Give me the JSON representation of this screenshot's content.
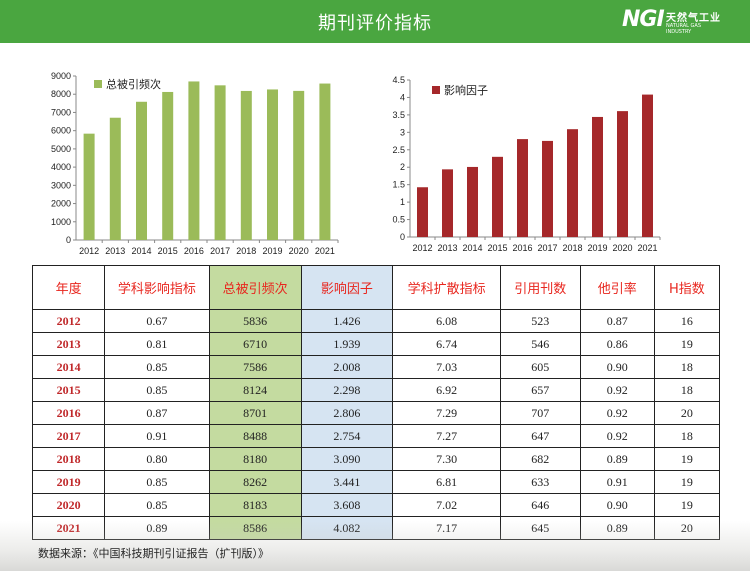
{
  "header": {
    "title": "期刊评价指标"
  },
  "logo": {
    "mark": "NGI",
    "name_cn": "天然气工业",
    "name_en": "NATURAL GAS INDUSTRY"
  },
  "colors": {
    "header_green": "#4aa640",
    "bar_green": "#9bbb59",
    "bar_red": "#a5282a",
    "cell_green": "#c4dba0",
    "cell_blue": "#d6e4f2",
    "header_text_red": "#e8261e"
  },
  "chart_data": [
    {
      "type": "bar",
      "categories": [
        "2012",
        "2013",
        "2014",
        "2015",
        "2016",
        "2017",
        "2018",
        "2019",
        "2020",
        "2021"
      ],
      "series": [
        {
          "name": "总被引频次",
          "values": [
            5836,
            6710,
            7586,
            8124,
            8701,
            8488,
            8180,
            8262,
            8183,
            8586
          ]
        }
      ],
      "ylim": [
        0,
        9000
      ],
      "yticks": [
        "0",
        "1000",
        "2000",
        "3000",
        "4000",
        "5000",
        "6000",
        "7000",
        "8000",
        "9000"
      ],
      "legend_position": "top-left",
      "grid": false
    },
    {
      "type": "bar",
      "categories": [
        "2012",
        "2013",
        "2014",
        "2015",
        "2016",
        "2017",
        "2018",
        "2019",
        "2020",
        "2021"
      ],
      "series": [
        {
          "name": "影响因子",
          "values": [
            1.426,
            1.939,
            2.008,
            2.298,
            2.806,
            2.754,
            3.09,
            3.441,
            3.608,
            4.082
          ]
        }
      ],
      "ylim": [
        0,
        4.5
      ],
      "yticks": [
        "0",
        "0.5",
        "1",
        "1.5",
        "2",
        "2.5",
        "3",
        "3.5",
        "4",
        "4.5"
      ],
      "legend_position": "top-left",
      "grid": false
    }
  ],
  "table": {
    "headers": [
      "年度",
      "学科影响指标",
      "总被引频次",
      "影响因子",
      "学科扩散指标",
      "引用刊数",
      "他引率",
      "H指数"
    ],
    "rows": [
      [
        "2012",
        "0.67",
        "5836",
        "1.426",
        "6.08",
        "523",
        "0.87",
        "16"
      ],
      [
        "2013",
        "0.81",
        "6710",
        "1.939",
        "6.74",
        "546",
        "0.86",
        "19"
      ],
      [
        "2014",
        "0.85",
        "7586",
        "2.008",
        "7.03",
        "605",
        "0.90",
        "18"
      ],
      [
        "2015",
        "0.85",
        "8124",
        "2.298",
        "6.92",
        "657",
        "0.92",
        "18"
      ],
      [
        "2016",
        "0.87",
        "8701",
        "2.806",
        "7.29",
        "707",
        "0.92",
        "20"
      ],
      [
        "2017",
        "0.91",
        "8488",
        "2.754",
        "7.27",
        "647",
        "0.92",
        "18"
      ],
      [
        "2018",
        "0.80",
        "8180",
        "3.090",
        "7.30",
        "682",
        "0.89",
        "19"
      ],
      [
        "2019",
        "0.85",
        "8262",
        "3.441",
        "6.81",
        "633",
        "0.91",
        "19"
      ],
      [
        "2020",
        "0.85",
        "8183",
        "3.608",
        "7.02",
        "646",
        "0.90",
        "19"
      ],
      [
        "2021",
        "0.89",
        "8586",
        "4.082",
        "7.17",
        "645",
        "0.89",
        "20"
      ]
    ]
  },
  "footer": {
    "source": "数据来源：《中国科技期刊引证报告（扩刊版）》"
  }
}
